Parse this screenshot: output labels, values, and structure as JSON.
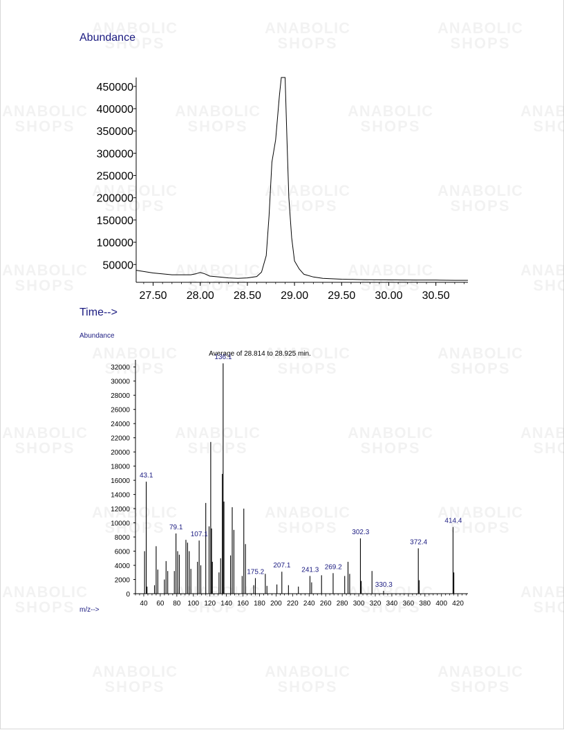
{
  "watermark": {
    "line1": "ANABOLIC",
    "line2": "SHOPS"
  },
  "chart_data": [
    {
      "type": "line",
      "title": "",
      "ylabel": "Abundance",
      "xlabel": "Time-->",
      "xlim": [
        27.32,
        30.84
      ],
      "ylim": [
        10000,
        470000
      ],
      "x_ticks": [
        27.5,
        28.0,
        28.5,
        29.0,
        29.5,
        30.0,
        30.5
      ],
      "x_tick_labels": [
        "27.50",
        "28.00",
        "28.50",
        "29.00",
        "29.50",
        "30.00",
        "30.50"
      ],
      "y_ticks": [
        50000,
        100000,
        150000,
        200000,
        250000,
        300000,
        350000,
        400000,
        450000
      ],
      "y_tick_labels": [
        "50000",
        "100000",
        "150000",
        "200000",
        "250000",
        "300000",
        "350000",
        "400000",
        "450000"
      ],
      "series": [
        {
          "x": [
            27.32,
            27.5,
            27.7,
            27.9,
            27.95,
            28.0,
            28.05,
            28.1,
            28.2,
            28.3,
            28.4,
            28.5,
            28.6,
            28.65,
            28.7,
            28.73,
            28.76,
            28.8,
            28.84,
            28.86,
            28.87,
            28.9,
            28.92,
            28.94,
            28.97,
            29.0,
            29.05,
            29.1,
            29.2,
            29.3,
            29.5,
            29.7,
            30.0,
            30.3,
            30.5,
            30.7,
            30.84
          ],
          "y": [
            37000,
            31000,
            27000,
            27000,
            29000,
            32000,
            29000,
            24000,
            22000,
            20000,
            19000,
            20000,
            23000,
            33000,
            70000,
            160000,
            280000,
            330000,
            430000,
            470000,
            470000,
            470000,
            330000,
            200000,
            110000,
            58000,
            40000,
            28000,
            22000,
            19000,
            17000,
            16000,
            15500,
            15000,
            15000,
            14500,
            14500
          ]
        }
      ]
    },
    {
      "type": "bar",
      "title": "Average of 28.814 to 28.925 min.",
      "ylabel": "Abundance",
      "xlabel": "m/z-->",
      "xlim": [
        30,
        432
      ],
      "ylim": [
        0,
        33000
      ],
      "x_ticks": [
        40,
        60,
        80,
        100,
        120,
        140,
        160,
        180,
        200,
        220,
        240,
        260,
        280,
        300,
        320,
        340,
        360,
        380,
        400,
        420
      ],
      "y_ticks": [
        0,
        2000,
        4000,
        6000,
        8000,
        10000,
        12000,
        14000,
        16000,
        18000,
        20000,
        22000,
        24000,
        26000,
        28000,
        30000,
        32000
      ],
      "x": [
        41,
        43,
        44,
        53,
        55,
        57,
        65,
        67,
        69,
        77,
        79,
        81,
        83,
        91,
        93,
        95,
        97,
        105,
        107,
        109,
        115,
        119,
        121,
        122,
        123,
        131,
        133,
        135,
        136,
        137,
        145,
        147,
        149,
        159,
        161,
        163,
        173,
        175,
        187,
        189,
        201,
        207,
        215,
        227,
        241,
        243,
        255,
        269,
        283,
        287,
        289,
        302,
        303,
        316,
        330,
        372,
        373,
        414,
        415
      ],
      "y": [
        6000,
        15800,
        1000,
        1200,
        6700,
        3400,
        2000,
        4600,
        3200,
        3200,
        8500,
        6000,
        5500,
        7600,
        7200,
        6000,
        3500,
        4500,
        7500,
        4000,
        12800,
        9500,
        21400,
        9200,
        4500,
        3000,
        5000,
        16900,
        32500,
        13000,
        5400,
        12200,
        9000,
        2500,
        12000,
        7000,
        1200,
        2200,
        2800,
        1100,
        1300,
        3100,
        1200,
        1000,
        2500,
        1600,
        2600,
        2900,
        2500,
        4500,
        2800,
        7800,
        1800,
        3200,
        400,
        6400,
        1900,
        9400,
        3000
      ],
      "annotations": [
        {
          "x": 43.1,
          "y": 15800,
          "label": "43.1"
        },
        {
          "x": 79.1,
          "y": 8500,
          "label": "79.1"
        },
        {
          "x": 107.1,
          "y": 7500,
          "label": "107.1"
        },
        {
          "x": 136.1,
          "y": 32500,
          "label": "136.1"
        },
        {
          "x": 175.2,
          "y": 2200,
          "label": "175.2"
        },
        {
          "x": 207.1,
          "y": 3100,
          "label": "207.1"
        },
        {
          "x": 241.3,
          "y": 2500,
          "label": "241.3"
        },
        {
          "x": 269.2,
          "y": 2900,
          "label": "269.2"
        },
        {
          "x": 302.3,
          "y": 7800,
          "label": "302.3"
        },
        {
          "x": 330.3,
          "y": 400,
          "label": "330.3"
        },
        {
          "x": 372.4,
          "y": 6400,
          "label": "372.4"
        },
        {
          "x": 414.4,
          "y": 9400,
          "label": "414.4"
        }
      ]
    }
  ]
}
